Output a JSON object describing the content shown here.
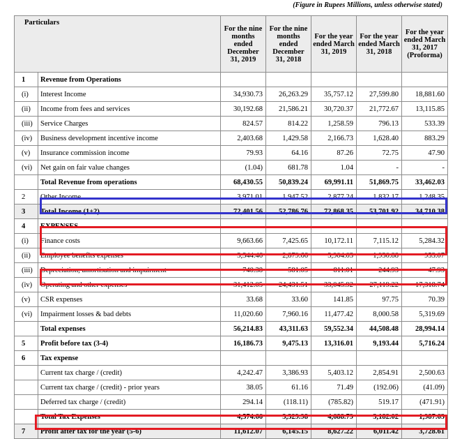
{
  "note": "(Figure in Rupees Millions, unless otherwise stated)",
  "header": {
    "particulars": "Particulars",
    "columns": [
      "For the nine months ended December 31, 2019",
      "For the nine months ended December 31, 2018",
      "For the year ended March 31, 2019",
      "For the year ended March 31, 2018",
      "For the year ended March 31, 2017 (Proforma)"
    ]
  },
  "rows": [
    {
      "no": "1",
      "label": "Revenue from Operations",
      "values": [
        "",
        "",
        "",
        "",
        ""
      ]
    },
    {
      "no": "(i)",
      "label": "Interest Income",
      "values": [
        "34,930.73",
        "26,263.29",
        "35,757.12",
        "27,599.80",
        "18,881.60"
      ]
    },
    {
      "no": "(ii)",
      "label": "Income from fees and services",
      "values": [
        "30,192.68",
        "21,586.21",
        "30,720.37",
        "21,772.67",
        "13,115.85"
      ]
    },
    {
      "no": "(iii)",
      "label": "Service Charges",
      "values": [
        "824.57",
        "814.22",
        "1,258.59",
        "796.13",
        "533.39"
      ]
    },
    {
      "no": "(iv)",
      "label": "Business development incentive income",
      "values": [
        "2,403.68",
        "1,429.58",
        "2,166.73",
        "1,628.40",
        "883.29"
      ]
    },
    {
      "no": "(v)",
      "label": "Insurance commission income",
      "values": [
        "79.93",
        "64.16",
        "87.26",
        "72.75",
        "47.90"
      ]
    },
    {
      "no": "(vi)",
      "label": "Net gain on fair value changes",
      "values": [
        "(1.04)",
        "681.78",
        "1.04",
        "-",
        "-"
      ]
    },
    {
      "no": "",
      "label": "Total Revenue from operations",
      "values": [
        "68,430.55",
        "50,839.24",
        "69,991.11",
        "51,869.75",
        "33,462.03"
      ]
    },
    {
      "no": "2",
      "label": "Other Income",
      "values": [
        "3,971.01",
        "1,947.52",
        "2,877.24",
        "1,832.17",
        "1,248.35"
      ]
    },
    {
      "no": "3",
      "label": "Total Income (1+2)",
      "values": [
        "72,401.56",
        "52,786.76",
        "72,868.35",
        "53,701.92",
        "34,710.38"
      ]
    },
    {
      "no": "4",
      "label": "EXPENSES",
      "values": [
        "",
        "",
        "",
        "",
        ""
      ]
    },
    {
      "no": "(i)",
      "label": "Finance costs",
      "values": [
        "9,663.66",
        "7,425.65",
        "10,172.11",
        "7,115.12",
        "5,284.32"
      ]
    },
    {
      "no": "(ii)",
      "label": "Employee benefits expenses",
      "values": [
        "3,344.46",
        "2,879.66",
        "3,904.03",
        "1,930.88",
        "953.07"
      ]
    },
    {
      "no": "(iii)",
      "label": "Depreciation, amortisation and impairment",
      "values": [
        "740.38",
        "581.05",
        "811.01",
        "244.93",
        "47.93"
      ]
    },
    {
      "no": "(iv)",
      "label": "Operating and other expenses",
      "values": [
        "31,412.05",
        "24,431.51",
        "33,045.92",
        "27,119.22",
        "17,318.74"
      ]
    },
    {
      "no": "(v)",
      "label": "CSR expenses",
      "values": [
        "33.68",
        "33.60",
        "141.85",
        "97.75",
        "70.39"
      ]
    },
    {
      "no": "(vi)",
      "label": "Impairment losses & bad debts",
      "values": [
        "11,020.60",
        "7,960.16",
        "11,477.42",
        "8,000.58",
        "5,319.69"
      ]
    },
    {
      "no": "",
      "label": "Total expenses",
      "values": [
        "56,214.83",
        "43,311.63",
        "59,552.34",
        "44,508.48",
        "28,994.14"
      ]
    },
    {
      "no": "5",
      "label": "Profit before tax (3-4)",
      "values": [
        "16,186.73",
        "9,475.13",
        "13,316.01",
        "9,193.44",
        "5,716.24"
      ]
    },
    {
      "no": "6",
      "label": "Tax expense",
      "values": [
        "",
        "",
        "",
        "",
        ""
      ]
    },
    {
      "no": "",
      "label": "Current tax charge / (credit)",
      "values": [
        "4,242.47",
        "3,386.93",
        "5,403.12",
        "2,854.91",
        "2,500.63"
      ]
    },
    {
      "no": "",
      "label": "Current tax charge / (credit) - prior years",
      "values": [
        "38.05",
        "61.16",
        "71.49",
        "(192.06)",
        "(41.09)"
      ]
    },
    {
      "no": "",
      "label": "Deferred tax charge / (credit)",
      "values": [
        "294.14",
        "(118.11)",
        "(785.82)",
        "519.17",
        "(471.91)"
      ]
    },
    {
      "no": "",
      "label": "Total Tax Expenses",
      "values": [
        "4,574.66",
        "3,329.98",
        "4,688.79",
        "3,182.02",
        "1,987.63"
      ]
    },
    {
      "no": "7",
      "label": "Profit after tax for the year (5-6)",
      "values": [
        "11,612.07",
        "6,145.15",
        "8,627.22",
        "6,011.42",
        "3,728.61"
      ]
    }
  ],
  "bold_rows": [
    0,
    7,
    9,
    10,
    17,
    18,
    19,
    23,
    24
  ],
  "shade_rows": [
    9,
    24
  ],
  "highlight_colors": {
    "blue": "#3333cc",
    "red": "#e31b23"
  }
}
